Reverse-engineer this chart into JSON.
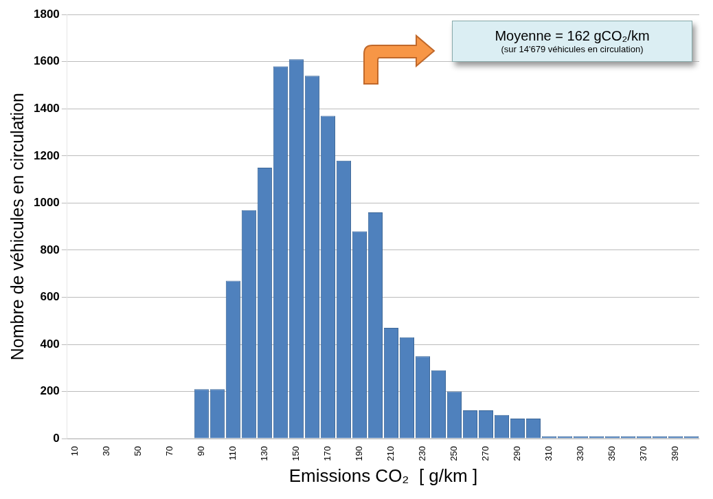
{
  "chart_data": {
    "type": "bar",
    "xlabel": "Emissions CO₂  [ g/km ]",
    "ylabel": "Nombre de véhicules en circulation",
    "categories": [
      "10",
      null,
      "30",
      null,
      "50",
      null,
      "70",
      null,
      "90",
      null,
      "110",
      null,
      "130",
      null,
      "150",
      null,
      "170",
      null,
      "190",
      null,
      "210",
      null,
      "230",
      null,
      "250",
      null,
      "270",
      null,
      "290",
      null,
      "310",
      null,
      "330",
      null,
      "350",
      null,
      "370",
      null,
      "390",
      null
    ],
    "values": [
      0,
      0,
      0,
      0,
      0,
      0,
      0,
      0,
      210,
      210,
      670,
      970,
      1150,
      1580,
      1610,
      1540,
      1370,
      1180,
      880,
      960,
      470,
      430,
      350,
      290,
      200,
      120,
      120,
      100,
      85,
      85,
      10,
      10,
      10,
      10,
      10,
      10,
      10,
      10,
      10,
      10
    ],
    "color": "#4f81bd",
    "ylim": [
      0,
      1800
    ],
    "yticks": [
      0,
      200,
      400,
      600,
      800,
      1000,
      1200,
      1400,
      1600,
      1800
    ],
    "grid": "y",
    "legend": false,
    "annotations": [
      "Moyenne = 162 gCO₂/km",
      "(sur 14'679 véhicules en circulation)"
    ]
  }
}
